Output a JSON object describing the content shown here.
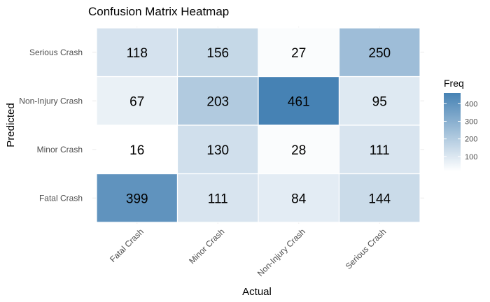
{
  "chart_data": {
    "type": "heatmap",
    "title": "Confusion Matrix Heatmap",
    "xlabel": "Actual",
    "ylabel": "Predicted",
    "x_categories": [
      "Fatal Crash",
      "Minor Crash",
      "Non-Injury Crash",
      "Serious Crash"
    ],
    "y_categories": [
      "Fatal Crash",
      "Minor Crash",
      "Non-Injury Crash",
      "Serious Crash"
    ],
    "values": [
      [
        399,
        111,
        84,
        144
      ],
      [
        16,
        130,
        28,
        111
      ],
      [
        67,
        203,
        461,
        95
      ],
      [
        118,
        156,
        27,
        250
      ]
    ],
    "legend": {
      "title": "Freq",
      "ticks": [
        100,
        200,
        300,
        400
      ],
      "range": [
        16,
        461
      ],
      "low_color": "#ffffff",
      "high_color": "#4682b4",
      "placement": "right"
    },
    "grid": true
  }
}
